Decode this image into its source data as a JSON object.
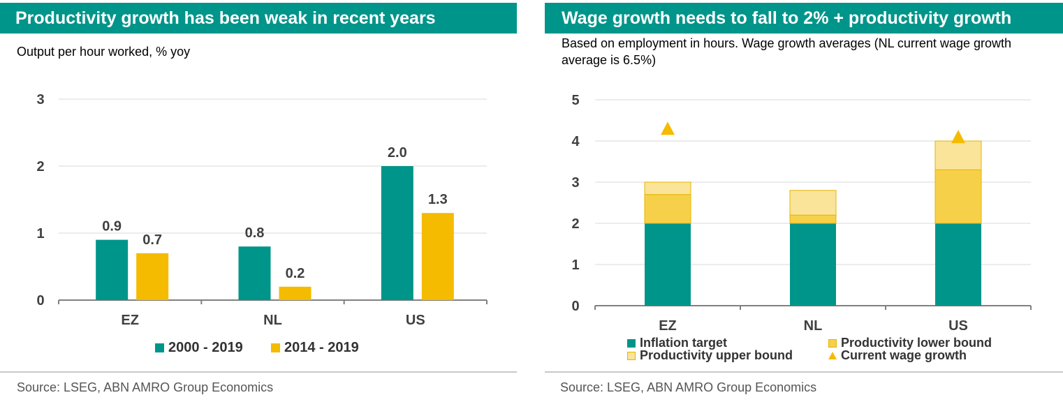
{
  "left": {
    "title": "Productivity growth has been weak in recent years",
    "subtitle": "Output per hour worked, % yoy",
    "source": "Source: LSEG, ABN AMRO Group Economics"
  },
  "right": {
    "title": "Wage growth needs to fall to 2% + productivity growth",
    "subtitle": "Based on employment in hours. Wage growth averages (NL current wage growth average is 6.5%)",
    "source": "Source: LSEG, ABN AMRO Group Economics"
  },
  "colors": {
    "teal": "#00958a",
    "gold": "#f5bb00",
    "lower": "#f7d04a",
    "upper": "#f9e49a"
  },
  "chart_data": [
    {
      "type": "bar",
      "title": "Productivity growth has been weak in recent years",
      "subtitle": "Output per hour worked, % yoy",
      "categories": [
        "EZ",
        "NL",
        "US"
      ],
      "series": [
        {
          "name": "2000 - 2019",
          "values": [
            0.9,
            0.8,
            2.0
          ],
          "labels": [
            "0.9",
            "0.8",
            "2.0"
          ]
        },
        {
          "name": "2014 - 2019",
          "values": [
            0.7,
            0.2,
            1.3
          ],
          "labels": [
            "0.7",
            "0.2",
            "1.3"
          ]
        }
      ],
      "yticks": [
        "0",
        "1",
        "2",
        "3"
      ],
      "ylim": [
        0,
        3
      ],
      "grid": true,
      "legend": "bottom"
    },
    {
      "type": "bar",
      "stacked": true,
      "title": "Wage growth needs to fall to 2% + productivity growth",
      "subtitle": "Based on employment in hours. Wage growth averages (NL current wage growth average is 6.5%)",
      "categories": [
        "EZ",
        "NL",
        "US"
      ],
      "series": [
        {
          "name": "Inflation target",
          "values": [
            2.0,
            2.0,
            2.0
          ]
        },
        {
          "name": "Productivity lower bound",
          "values": [
            0.7,
            0.2,
            1.3
          ]
        },
        {
          "name": "Productivity upper bound",
          "values": [
            0.3,
            0.6,
            0.7
          ]
        }
      ],
      "markers": {
        "name": "Current wage growth",
        "values": [
          4.3,
          null,
          4.1
        ]
      },
      "yticks": [
        "0",
        "1",
        "2",
        "3",
        "4",
        "5"
      ],
      "ylim": [
        0,
        5
      ],
      "grid": true,
      "legend": "bottom"
    }
  ]
}
